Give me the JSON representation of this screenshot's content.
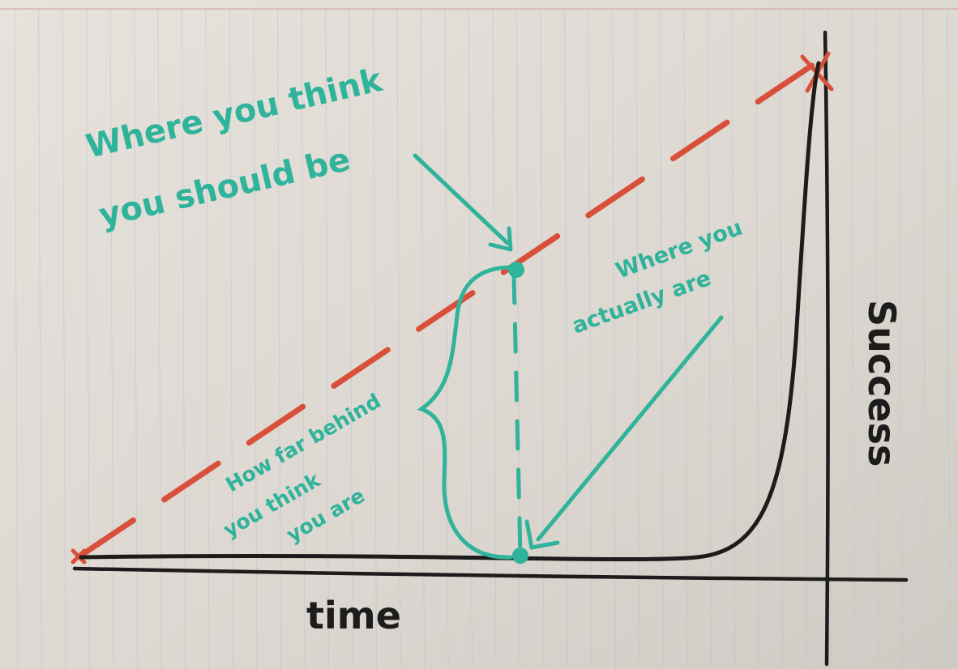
{
  "diagram": {
    "axis_x_label": "time",
    "axis_y_label": "Success",
    "annotations": {
      "think_should_be_line1": "Where you think",
      "think_should_be_line2": "you should be",
      "actually_are_line1": "Where you",
      "actually_are_line2": "actually are",
      "how_far_line1": "How far behind",
      "how_far_line2": "you think",
      "how_far_line3": "you are"
    },
    "curves": [
      {
        "name": "Where you think you should be",
        "style": "dashed-line",
        "shape": "linear",
        "color": "#d9503a"
      },
      {
        "name": "Where you actually are",
        "style": "solid-line",
        "shape": "exponential",
        "color": "#1c1c1c"
      }
    ],
    "marker_color": "#2fb39a"
  }
}
